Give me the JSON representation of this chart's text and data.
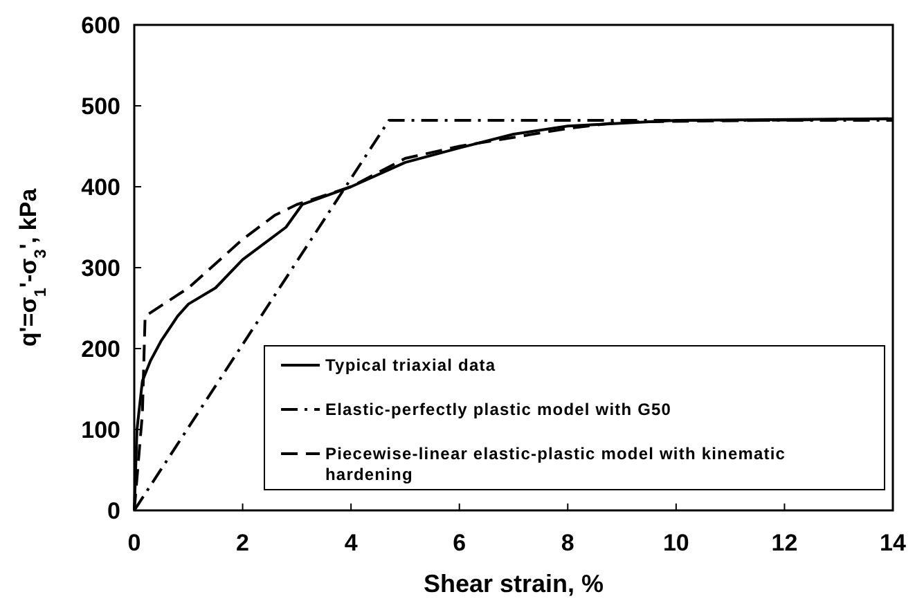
{
  "chart_data": {
    "type": "line",
    "xlabel": "Shear strain, %",
    "ylabel": "q'=σ$_{1}$'-σ$_{3}$', kPa",
    "xlim": [
      0,
      14
    ],
    "xticks": [
      0,
      2,
      4,
      6,
      8,
      10,
      12,
      14
    ],
    "ylim": [
      0,
      600
    ],
    "yticks": [
      0,
      100,
      200,
      300,
      400,
      500,
      600
    ],
    "grid": false,
    "legend": "bottom right",
    "series": [
      {
        "name": "Typical triaxial data",
        "color": "#000000",
        "line_style": "solid",
        "x": [
          0,
          0.05,
          0.15,
          0.3,
          0.5,
          0.8,
          1,
          1.5,
          2,
          2.5,
          2.8,
          3.1,
          4,
          5,
          6,
          7,
          8,
          10,
          14
        ],
        "values": [
          0,
          100,
          160,
          185,
          210,
          240,
          255,
          275,
          310,
          335,
          350,
          378,
          400,
          430,
          448,
          465,
          475,
          482,
          484
        ]
      },
      {
        "name": "Elastic-perfectly plastic model with G50",
        "color": "#000000",
        "line_style": "dashdot",
        "x": [
          0,
          4.7,
          14
        ],
        "values": [
          0,
          482,
          482
        ]
      },
      {
        "name": "Piecewise-linear elastic-plastic model with kinematic hardening",
        "color": "#000000",
        "line_style": "dashed",
        "x": [
          0,
          0.15,
          0.2,
          1,
          2,
          2.6,
          3,
          4,
          5,
          6,
          8,
          9,
          14
        ],
        "values": [
          0,
          120,
          240,
          275,
          335,
          365,
          378,
          400,
          435,
          450,
          472,
          480,
          484
        ]
      }
    ]
  }
}
